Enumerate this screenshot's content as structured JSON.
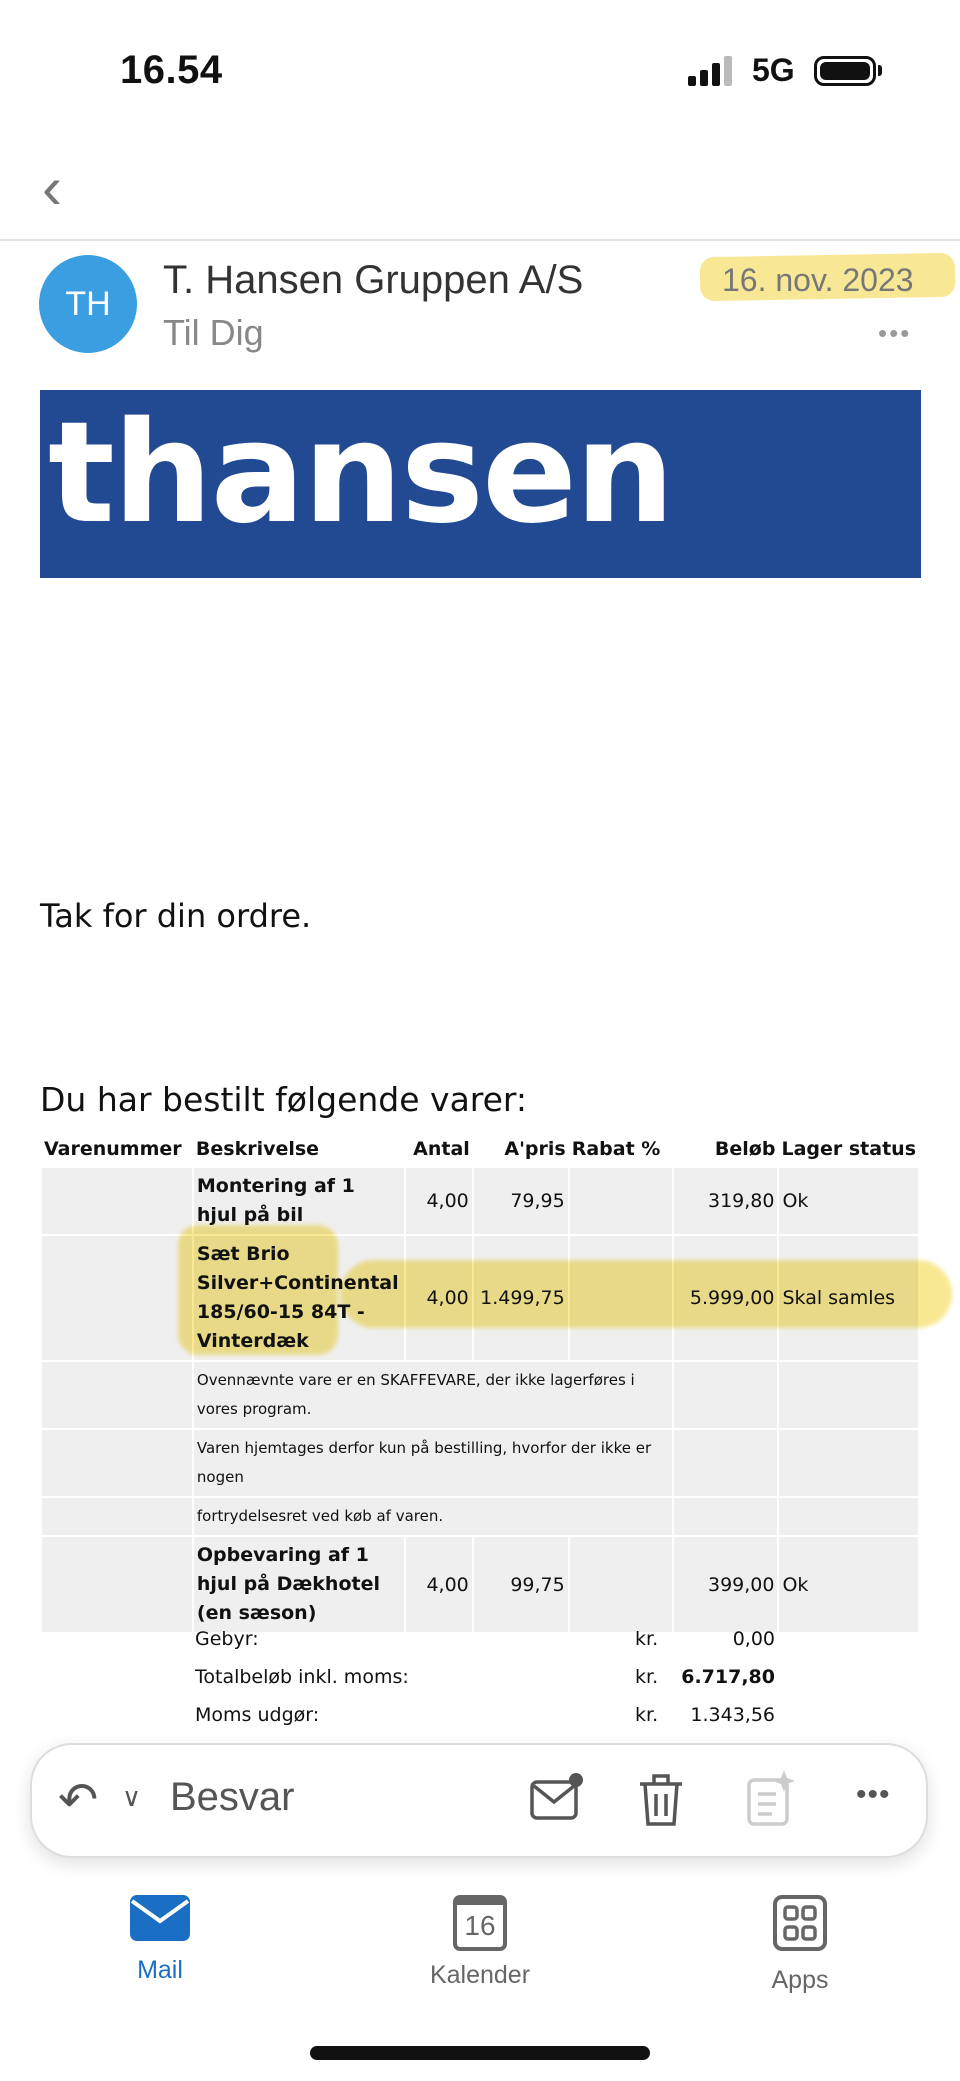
{
  "status_bar": {
    "time": "16.54",
    "network": "5G"
  },
  "header": {
    "avatar_initials": "TH",
    "sender": "T. Hansen Gruppen A/S",
    "recipient": "Til Dig",
    "date": "16. nov. 2023"
  },
  "banner": {
    "logo_text": "thansen",
    "color": "#224a93"
  },
  "body": {
    "thanks": "Tak for din ordre.",
    "intro": "Du har bestilt følgende varer:"
  },
  "table": {
    "headers": [
      "Varenummer",
      "Beskrivelse",
      "Antal",
      "A'pris",
      "Rabat %",
      "Beløb",
      "Lager status"
    ],
    "rows": [
      {
        "varenummer": "",
        "beskrivelse": "Montering af 1 hjul på bil",
        "antal": "4,00",
        "apris": "79,95",
        "rabat": "",
        "belob": "319,80",
        "status": "Ok"
      },
      {
        "varenummer": "",
        "beskrivelse": "Sæt Brio Silver+Continental 185/60-15 84T - Vinterdæk",
        "antal": "4,00",
        "apris": "1.499,75",
        "rabat": "",
        "belob": "5.999,00",
        "status": "Skal samles"
      },
      {
        "note": "Ovennævnte vare er en SKAFFEVARE, der ikke lagerføres i vores program."
      },
      {
        "note": "Varen hjemtages derfor kun på bestilling, hvorfor der ikke er nogen"
      },
      {
        "note": "fortrydelsesret ved køb af varen."
      },
      {
        "varenummer": "",
        "beskrivelse": "Opbevaring af 1 hjul på Dækhotel (en sæson)",
        "antal": "4,00",
        "apris": "99,75",
        "rabat": "",
        "belob": "399,00",
        "status": "Ok"
      }
    ]
  },
  "totals": [
    {
      "label": "Gebyr:",
      "currency": "kr.",
      "value": "0,00"
    },
    {
      "label": "Totalbeløb inkl. moms:",
      "currency": "kr.",
      "value": "6.717,80"
    },
    {
      "label": "Moms udgør:",
      "currency": "kr.",
      "value": "1.343,56"
    }
  ],
  "toolbar": {
    "reply_label": "Besvar",
    "icons": [
      "reply-icon",
      "chevron-down-icon",
      "mark-unread-icon",
      "trash-icon",
      "summary-icon",
      "more-icon"
    ]
  },
  "tabs": [
    {
      "label": "Mail",
      "active": true
    },
    {
      "label": "Kalender",
      "calendar_day": "16"
    },
    {
      "label": "Apps"
    }
  ],
  "colors": {
    "accent": "#1a6fc4",
    "avatar": "#3b9ee0",
    "highlight": "#f4d73a"
  }
}
